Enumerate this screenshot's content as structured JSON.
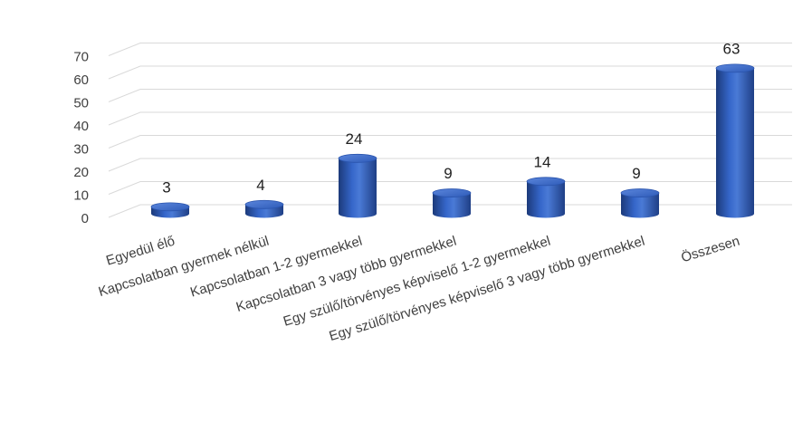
{
  "chart_data": {
    "type": "bar",
    "style": "3d-cylinder",
    "categories": [
      "Egyedül élő",
      "Kapcsolatban gyermek nélkül",
      "Kapcsolatban 1-2 gyermekkel",
      "Kapcsolatban 3 vagy több gyermekkel",
      "Egy szülő/törvényes képviselő 1-2 gyermekkel",
      "Egy szülő/törvényes képviselő 3 vagy több gyermekkel",
      "Összesen"
    ],
    "values": [
      3,
      4,
      24,
      9,
      14,
      9,
      63
    ],
    "data_labels": [
      "3",
      "4",
      "24",
      "9",
      "14",
      "9",
      "63"
    ],
    "title": "",
    "xlabel": "",
    "ylabel": "",
    "ylim": [
      0,
      70
    ],
    "yticks": [
      "0",
      "10",
      "20",
      "30",
      "40",
      "50",
      "60",
      "70"
    ],
    "grid": true,
    "legend": "none",
    "colors": {
      "bar_dark": "#1c3a7a",
      "bar_mid": "#3566c9",
      "bar_light": "#6f95e0",
      "grid": "#d9d9d9"
    }
  }
}
